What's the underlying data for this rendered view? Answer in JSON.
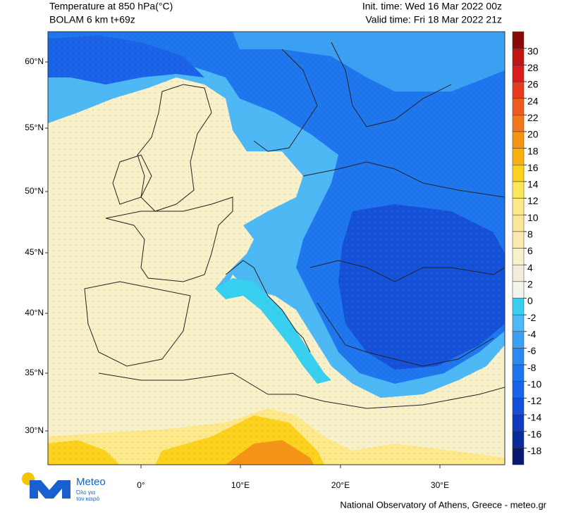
{
  "header": {
    "title_left": [
      "Temperature at 850 hPa(°C)",
      "BOLAM 6 km t+69z"
    ],
    "title_right": [
      "Init. time: Wed 16 Mar 2022 00z",
      "Valid time: Fri 18 Mar 2022 21z"
    ]
  },
  "map": {
    "lat_labels": [
      "60°N",
      "55°N",
      "50°N",
      "45°N",
      "40°N",
      "35°N",
      "30°N"
    ],
    "lon_labels": [
      "0°",
      "10°E",
      "20°E",
      "30°E"
    ]
  },
  "colorbar": {
    "ticks": [
      -18,
      -16,
      -14,
      -12,
      -10,
      -8,
      -6,
      -4,
      -2,
      0,
      2,
      4,
      6,
      8,
      10,
      12,
      14,
      16,
      18,
      20,
      22,
      24,
      26,
      28,
      30
    ],
    "colors": [
      "#0a1a6e",
      "#0b2a9c",
      "#0f3bc0",
      "#1450d8",
      "#1a62e8",
      "#1e76ef",
      "#2a8af2",
      "#3aa0f4",
      "#4cb8f6",
      "#37d0f0",
      "#f4f4ee",
      "#f1efdc",
      "#f7f0c8",
      "#faeab0",
      "#fbe69c",
      "#fde98a",
      "#fde65c",
      "#fcd21c",
      "#f8b010",
      "#f59516",
      "#f1761c",
      "#ec5a1f",
      "#e63a1e",
      "#d91d1a",
      "#c01512",
      "#8a0a0a"
    ]
  },
  "logo": {
    "name": "Meteo",
    "tagline": [
      "Όλο για",
      "τον καιρό"
    ]
  },
  "footer": "National Observatory of Athens, Greece - meteo.gr"
}
